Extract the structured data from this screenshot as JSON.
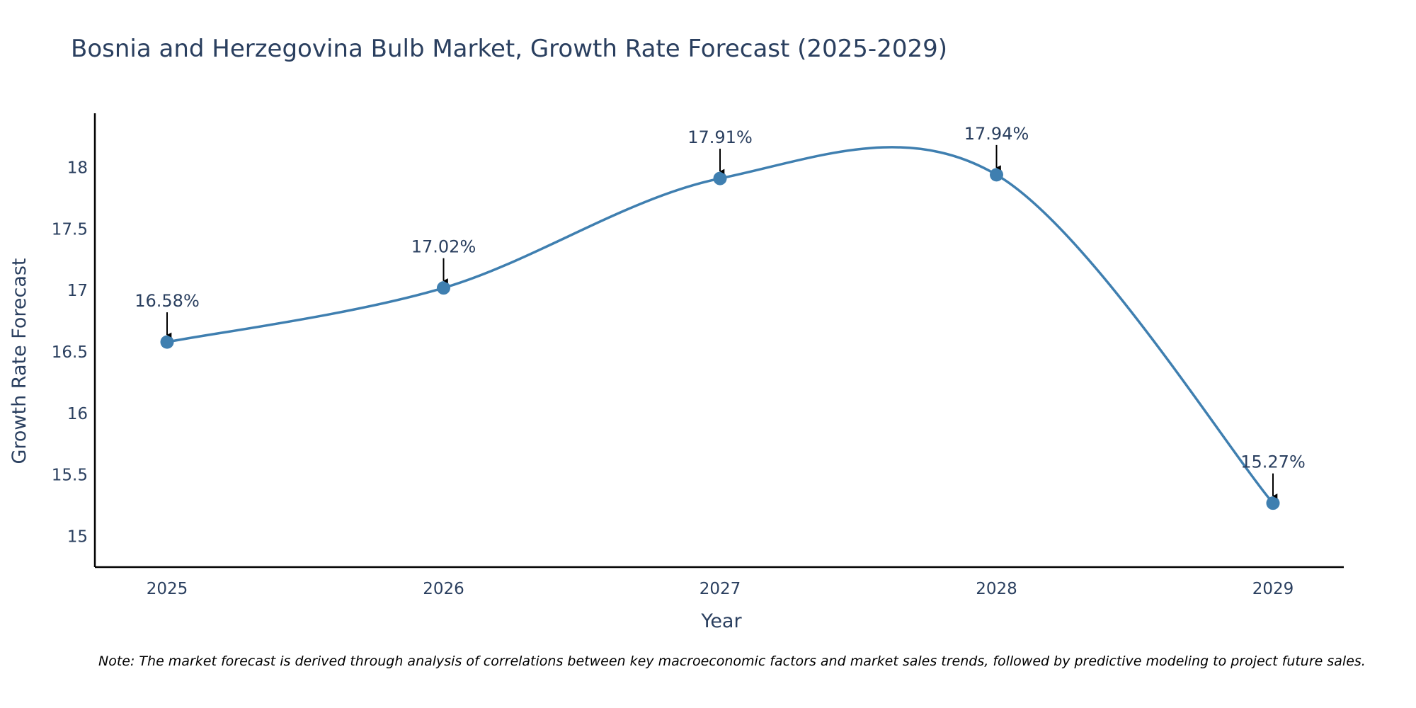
{
  "chart_data": {
    "type": "line",
    "title": "Bosnia and Herzegovina Bulb Market, Growth Rate Forecast (2025-2029)",
    "xlabel": "Year",
    "ylabel": "Growth Rate Forecast",
    "categories": [
      "2025",
      "2026",
      "2027",
      "2028",
      "2029"
    ],
    "series": [
      {
        "name": "Growth Rate Forecast",
        "values": [
          16.58,
          17.02,
          17.91,
          17.94,
          15.27
        ],
        "labels": [
          "16.58%",
          "17.02%",
          "17.91%",
          "17.94%",
          "15.27%"
        ],
        "color": "#3f7fb0"
      }
    ],
    "ylim": [
      14.75,
      18.44
    ],
    "yticks": [
      15,
      15.5,
      16,
      16.5,
      17,
      17.5,
      18
    ],
    "ytick_labels": [
      "15",
      "15.5",
      "16",
      "16.5",
      "17",
      "17.5",
      "18"
    ],
    "grid": false,
    "line_shape": "spline"
  },
  "note": "Note: The market forecast is derived through analysis of correlations between key macroeconomic factors and market sales trends, followed by predictive modeling to project future sales.",
  "colors": {
    "text": "#2a3f5f",
    "axis": "#000000",
    "arrow": "#000000"
  }
}
